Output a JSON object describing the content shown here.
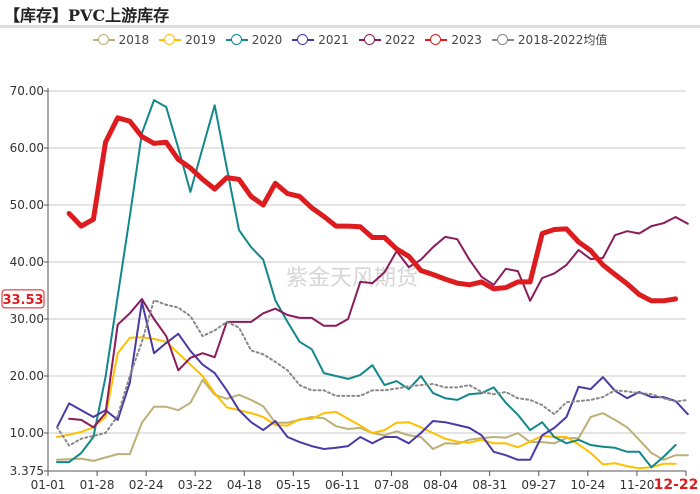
{
  "title": "【库存】PVC上游库存",
  "watermark": "紫金天风期货",
  "chart_data": {
    "type": "line",
    "title": "【库存】PVC上游库存",
    "x_tick_labels": [
      "01-01",
      "01-28",
      "02-24",
      "03-22",
      "04-18",
      "05-15",
      "06-11",
      "07-08",
      "08-04",
      "08-31",
      "09-27",
      "10-24",
      "11-20",
      "12-22"
    ],
    "highlight_x_label": "12-22",
    "y_tick_labels": [
      "3.375",
      "10.00",
      "20.00",
      "30.00",
      "40.00",
      "50.00",
      "60.00",
      "70.00"
    ],
    "ylim": [
      3.375,
      70
    ],
    "grid": true,
    "legend_position": "top",
    "current_value_label": "33.53",
    "current_value": 33.53,
    "series": [
      {
        "name": "2018",
        "color": "#BDB076",
        "dashed": false,
        "width": 2,
        "start": 0,
        "values": [
          5.3,
          5.4,
          5.5,
          5.1,
          5.7,
          6.3,
          6.3,
          11.8,
          14.6,
          14.6,
          14,
          15.3,
          19.3,
          16.7,
          16,
          16.7,
          15.8,
          14.7,
          11.8,
          11.8,
          12.3,
          12.8,
          12.6,
          11.2,
          10.7,
          10.9,
          10,
          9.6,
          10.3,
          9.6,
          9.3,
          7.2,
          8.2,
          8.1,
          8.8,
          9.1,
          9.3,
          9.2,
          10,
          8.4,
          8.4,
          8.2,
          9.1,
          9.1,
          12.8,
          13.5,
          12.3,
          11,
          8.8,
          6.5,
          5.3,
          6.1,
          6.1
        ]
      },
      {
        "name": "2019",
        "color": "#FFC000",
        "dashed": false,
        "width": 2,
        "start": 0,
        "values": [
          9.3,
          9.7,
          10.2,
          11,
          12.8,
          24,
          26.7,
          26.8,
          26.5,
          26,
          24,
          22,
          20,
          17,
          14.5,
          14,
          13.5,
          12.8,
          11.4,
          11.3,
          12.4,
          12.5,
          13.5,
          13.7,
          12.5,
          11.3,
          10,
          10.5,
          11.8,
          11.9,
          11,
          10,
          9,
          8.5,
          8.3,
          8.8,
          8.2,
          8.2,
          7.5,
          8.5,
          9.5,
          9.3,
          9.3,
          8,
          6.5,
          4.5,
          4.7,
          4.2,
          3.8,
          4,
          4.6,
          4.6
        ]
      },
      {
        "name": "2020",
        "color": "#12888A",
        "dashed": false,
        "width": 2,
        "start": 0,
        "values": [
          4.9,
          4.9,
          6.5,
          9.3,
          19.8,
          34,
          48,
          62.6,
          68.4,
          67.2,
          60,
          52.3,
          60,
          67.5,
          56.5,
          45.6,
          42.6,
          40.4,
          33.3,
          29.5,
          26,
          24.7,
          20.5,
          20,
          19.5,
          20.2,
          21.9,
          18.4,
          19.1,
          17.7,
          20,
          17,
          16.1,
          15.8,
          16.8,
          17,
          18,
          15.3,
          13.2,
          10.5,
          11.9,
          9.3,
          8.2,
          8.8,
          7.9,
          7.6,
          7.4,
          6.7,
          6.7,
          4,
          5.8,
          7.9
        ]
      },
      {
        "name": "2021",
        "color": "#4A3AA6",
        "dashed": false,
        "width": 2,
        "start": 0,
        "values": [
          11,
          15.2,
          14,
          12.8,
          14,
          12.3,
          18.8,
          33,
          24,
          25.8,
          27.4,
          24.4,
          22,
          20.5,
          17.5,
          14,
          11.9,
          10.5,
          12.1,
          9.3,
          8.4,
          7.7,
          7.2,
          7.4,
          7.7,
          9.3,
          8.2,
          9.3,
          9.3,
          8.2,
          10,
          12.1,
          11.9,
          11.4,
          10.9,
          9.6,
          6.7,
          6.1,
          5.3,
          5.3,
          9.6,
          10.9,
          12.8,
          18.1,
          17.7,
          19.8,
          17.4,
          16.1,
          17.2,
          16.3,
          16.3,
          15.6,
          13.3
        ]
      },
      {
        "name": "2022",
        "color": "#8A1C5C",
        "dashed": false,
        "width": 2,
        "start": 1,
        "values": [
          12.5,
          12.3,
          11,
          13.5,
          29,
          31,
          33.5,
          30,
          27,
          21,
          23.2,
          24,
          23.3,
          29.5,
          29.5,
          29.5,
          31,
          31.8,
          30.7,
          30.2,
          30.2,
          28.8,
          28.8,
          30,
          36.5,
          36.3,
          38.2,
          41.9,
          39.1,
          40.4,
          42.6,
          44.4,
          44,
          40.4,
          37.4,
          36,
          38.8,
          38.4,
          33.2,
          37.2,
          38,
          39.5,
          42.1,
          40.5,
          40.7,
          44.7,
          45.4,
          45,
          46.3,
          46.8,
          47.9,
          46.7
        ]
      },
      {
        "name": "2023",
        "color": "#DD1C1F",
        "dashed": false,
        "width": 5,
        "start": 1,
        "values": [
          48.5,
          46.3,
          47.5,
          61,
          65.3,
          64.7,
          62,
          60.8,
          61,
          58,
          56.5,
          54.5,
          52.8,
          54.8,
          54.5,
          51.5,
          50,
          53.8,
          52,
          51.5,
          49.5,
          48,
          46.3,
          46.3,
          46.2,
          44.3,
          44.3,
          42.3,
          41,
          38.5,
          37.8,
          37,
          36.3,
          36,
          36.5,
          35.3,
          35.5,
          36.5,
          36.5,
          45,
          45.7,
          45.8,
          43.5,
          42,
          39.5,
          37.8,
          36.2,
          34.3,
          33.2,
          33.2,
          33.53
        ]
      },
      {
        "name": "2018-2022均值",
        "color": "#888888",
        "dashed": true,
        "width": 2,
        "start": 0,
        "values": [
          11,
          7.8,
          9,
          9.5,
          10,
          13,
          20,
          26,
          33.3,
          32.5,
          32,
          30.5,
          27,
          28,
          29.5,
          28.5,
          24.5,
          23.8,
          22.5,
          21,
          18.4,
          17.5,
          17.5,
          16.5,
          16.5,
          16.5,
          17.5,
          17.5,
          17.8,
          18.2,
          18.4,
          18.6,
          18,
          18,
          18.4,
          17.2,
          16.8,
          17.2,
          16.1,
          15.8,
          14.9,
          13.3,
          15.4,
          15.6,
          15.8,
          16.3,
          17.5,
          17.3,
          17,
          16.8,
          16.1,
          15.5,
          15.8
        ]
      }
    ]
  }
}
